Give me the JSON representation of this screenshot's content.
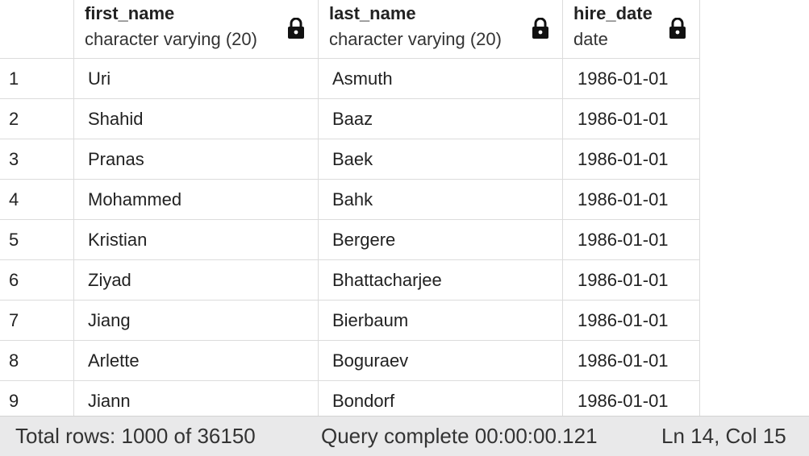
{
  "columns": [
    {
      "name": "first_name",
      "type": "character varying (20)",
      "icon": "lock-icon"
    },
    {
      "name": "last_name",
      "type": "character varying (20)",
      "icon": "lock-icon"
    },
    {
      "name": "hire_date",
      "type": "date",
      "icon": "lock-icon"
    }
  ],
  "rows": [
    {
      "num": "1",
      "first_name": "Uri",
      "last_name": "Asmuth",
      "hire_date": "1986-01-01"
    },
    {
      "num": "2",
      "first_name": "Shahid",
      "last_name": "Baaz",
      "hire_date": "1986-01-01"
    },
    {
      "num": "3",
      "first_name": "Pranas",
      "last_name": "Baek",
      "hire_date": "1986-01-01"
    },
    {
      "num": "4",
      "first_name": "Mohammed",
      "last_name": "Bahk",
      "hire_date": "1986-01-01"
    },
    {
      "num": "5",
      "first_name": "Kristian",
      "last_name": "Bergere",
      "hire_date": "1986-01-01"
    },
    {
      "num": "6",
      "first_name": "Ziyad",
      "last_name": "Bhattacharjee",
      "hire_date": "1986-01-01"
    },
    {
      "num": "7",
      "first_name": "Jiang",
      "last_name": "Bierbaum",
      "hire_date": "1986-01-01"
    },
    {
      "num": "8",
      "first_name": "Arlette",
      "last_name": "Boguraev",
      "hire_date": "1986-01-01"
    },
    {
      "num": "9",
      "first_name": "Jiann",
      "last_name": "Bondorf",
      "hire_date": "1986-01-01"
    }
  ],
  "status": {
    "total_rows": "Total rows: 1000 of 36150",
    "query": "Query complete 00:00:00.121",
    "position": "Ln 14, Col 15"
  },
  "colors": {
    "grid_border": "#dcdcdc",
    "status_bg": "#e9e9ea"
  }
}
